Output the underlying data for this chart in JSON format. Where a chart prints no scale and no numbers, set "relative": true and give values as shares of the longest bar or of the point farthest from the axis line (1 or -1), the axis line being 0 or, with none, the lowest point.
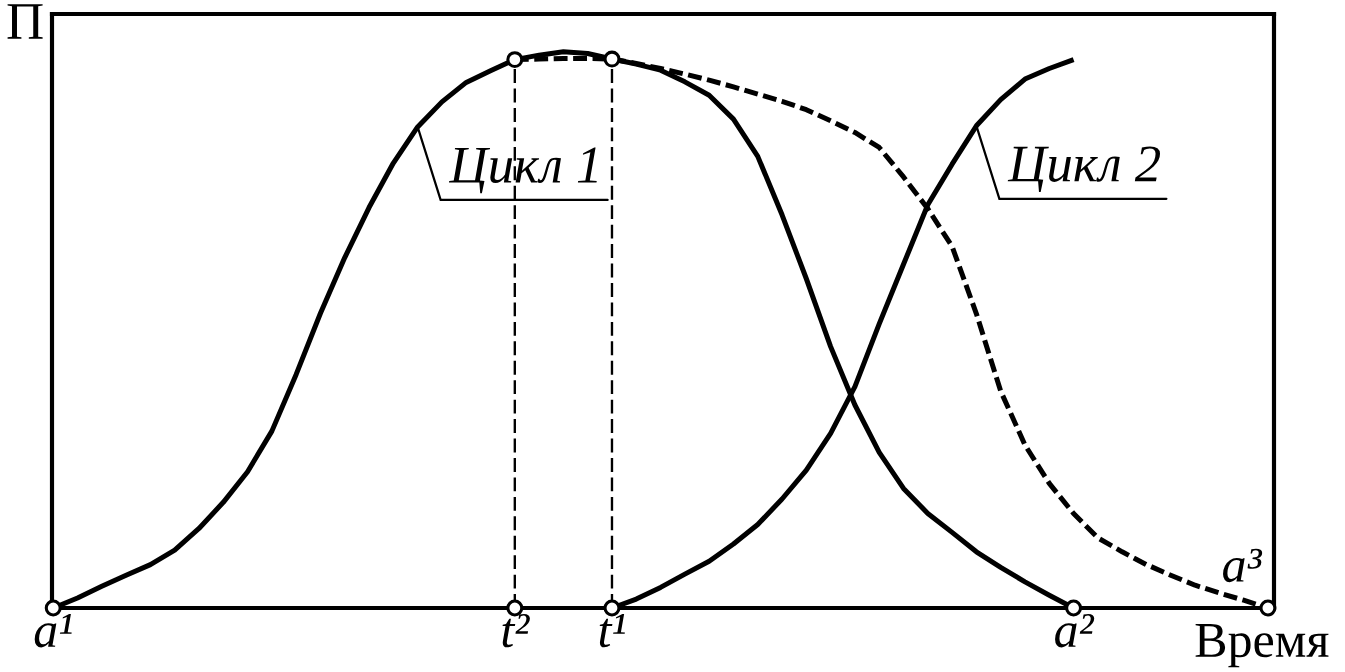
{
  "chart_data": {
    "type": "line",
    "relative": true,
    "xlabel": "Время",
    "ylabel": "П",
    "tick_labels": "x",
    "categories": [
      "a¹",
      null,
      null,
      null,
      null,
      null,
      null,
      null,
      null,
      null,
      null,
      null,
      null,
      null,
      null,
      null,
      null,
      null,
      null,
      "t²",
      null,
      null,
      null,
      "t¹",
      null,
      null,
      null,
      null,
      null,
      null,
      null,
      null,
      null,
      null,
      null,
      null,
      null,
      null,
      null,
      null,
      null,
      null,
      "a²",
      null,
      null,
      null,
      null,
      null,
      null,
      null,
      null
    ],
    "ref_lines": [
      {
        "axis": "x",
        "value": "t²",
        "color": "#000000",
        "line_style": "dashed"
      },
      {
        "axis": "x",
        "value": "t¹",
        "color": "#000000",
        "line_style": "dashed"
      }
    ],
    "series": [
      {
        "name": "Цикл 1",
        "color": "#000000",
        "line_style": "solid",
        "values": [
          0,
          0.018,
          0.039,
          0.059,
          0.078,
          0.104,
          0.143,
          0.19,
          0.245,
          0.318,
          0.42,
          0.53,
          0.63,
          0.72,
          0.8,
          0.865,
          0.91,
          0.945,
          0.966,
          0.986,
          0.994,
          1,
          0.997,
          0.987,
          0.978,
          0.967,
          0.946,
          0.922,
          0.879,
          0.812,
          0.707,
          0.592,
          0.47,
          0.365,
          0.28,
          0.215,
          0.17,
          0.136,
          0.101,
          0.073,
          0.047,
          0.023,
          0,
          null,
          null,
          null,
          null,
          null,
          null,
          null,
          null
        ]
      },
      {
        "name": "Цикл 2",
        "color": "#000000",
        "line_style": "solid",
        "values": [
          null,
          null,
          null,
          null,
          null,
          null,
          null,
          null,
          null,
          null,
          null,
          null,
          null,
          null,
          null,
          null,
          null,
          null,
          null,
          null,
          null,
          null,
          null,
          0,
          0.016,
          0.037,
          0.061,
          0.084,
          0.115,
          0.15,
          0.196,
          0.248,
          0.314,
          0.398,
          0.511,
          0.618,
          0.725,
          0.798,
          0.867,
          0.914,
          0.951,
          0.97,
          0.986,
          null,
          null,
          null,
          null,
          null,
          null,
          null,
          null
        ]
      },
      {
        "name": "a³",
        "color": "#000000",
        "line_style": "dashed",
        "values": [
          null,
          null,
          null,
          null,
          null,
          null,
          null,
          null,
          null,
          null,
          null,
          null,
          null,
          null,
          null,
          null,
          null,
          null,
          null,
          0.986,
          0.987,
          0.988,
          0.988,
          0.987,
          0.979,
          0.97,
          0.96,
          0.949,
          0.937,
          0.924,
          0.911,
          0.896,
          0.876,
          0.855,
          0.828,
          0.775,
          0.718,
          0.65,
          0.529,
          0.39,
          0.293,
          0.224,
          0.17,
          0.126,
          0.101,
          0.078,
          0.059,
          0.041,
          0.027,
          0.014,
          0
        ]
      },
      {
        "type": "scatter",
        "color": "#000000",
        "marker": "circle",
        "values": [
          0,
          null,
          null,
          null,
          null,
          null,
          null,
          null,
          null,
          null,
          null,
          null,
          null,
          null,
          null,
          null,
          null,
          null,
          null,
          0,
          null,
          null,
          null,
          0,
          null,
          null,
          null,
          null,
          null,
          null,
          null,
          null,
          null,
          null,
          null,
          null,
          null,
          null,
          null,
          null,
          null,
          null,
          0,
          null,
          null,
          null,
          null,
          null,
          null,
          null,
          0
        ]
      },
      {
        "type": "scatter",
        "color": "#000000",
        "marker": "circle",
        "values": [
          null,
          null,
          null,
          null,
          null,
          null,
          null,
          null,
          null,
          null,
          null,
          null,
          null,
          null,
          null,
          null,
          null,
          null,
          null,
          0.986,
          null,
          null,
          null,
          0.987,
          null,
          null,
          null,
          null,
          null,
          null,
          null,
          null,
          null,
          null,
          null,
          null,
          null,
          null,
          null,
          null,
          null,
          null,
          null,
          null,
          null,
          null,
          null,
          null,
          null,
          null,
          null
        ]
      }
    ]
  }
}
